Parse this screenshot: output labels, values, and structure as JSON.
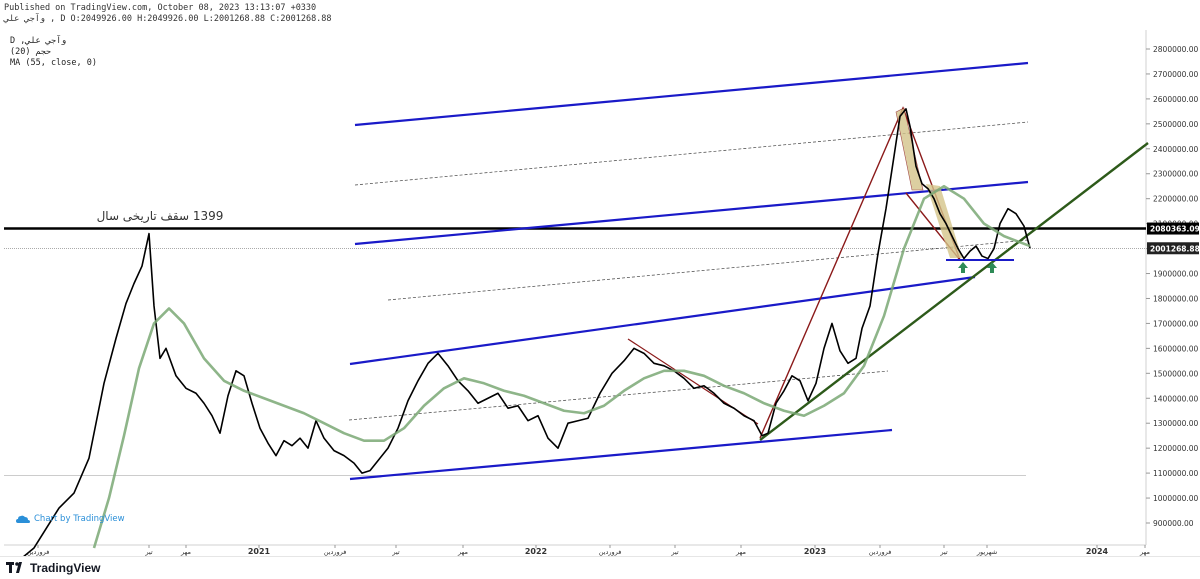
{
  "header": {
    "published": "Published on TradingView.com, October 08, 2023 13:13:07 +0330",
    "ohlc": "D O:2049926.00 H:2049926.00 L:2001268.88 C:2001268.88",
    "symbol": "وآجي علي"
  },
  "legend": {
    "line1": "D ,وآجي علي",
    "line2": "(20) حجم",
    "line3": "MA (55, close, 0)"
  },
  "watermark": {
    "text": "Chart by TradingView"
  },
  "footer": {
    "brand": "TradingView"
  },
  "annotation": {
    "text": "1399 سقف تاریخی سال"
  },
  "colors": {
    "price": "#000000",
    "ma": "#7aa874",
    "channel": "#1a1ac8",
    "trend": "#2d5a1a",
    "pattern": "#8b1a1a",
    "fill": "#d4c48a",
    "marker": "#2e8b57"
  },
  "chart_data": {
    "type": "line",
    "title": "",
    "ylim": [
      850000,
      2850000
    ],
    "y_ticks": [
      "2800000.00",
      "2700000.00",
      "2600000.00",
      "2500000.00",
      "2400000.00",
      "2300000.00",
      "2200000.00",
      "2100000.00",
      "2000000.00",
      "1900000.00",
      "1800000.00",
      "1700000.00",
      "1600000.00",
      "1500000.00",
      "1400000.00",
      "1300000.00",
      "1200000.00",
      "1100000.00",
      "1000000.00",
      "900000.00"
    ],
    "x_ticks": [
      "فروردین",
      "تیر",
      "مهر",
      "2021",
      "فروردین",
      "تیر",
      "مهر",
      "2022",
      "فروردین",
      "تیر",
      "مهر",
      "2023",
      "فروردین",
      "تیر",
      "شهریور",
      "2024",
      "مهر"
    ],
    "price_labels": [
      {
        "value": 2080363.09,
        "label": "2080363.09"
      },
      {
        "value": 2001268.88,
        "label": "2001268.88"
      }
    ],
    "series": [
      {
        "values": [
          [
            0,
            700000
          ],
          [
            30,
            800000
          ],
          [
            55,
            960000
          ],
          [
            70,
            1020000
          ],
          [
            85,
            1160000
          ],
          [
            100,
            1460000
          ],
          [
            112,
            1640000
          ],
          [
            122,
            1780000
          ],
          [
            130,
            1860000
          ],
          [
            138,
            1930000
          ],
          [
            145,
            2060000
          ],
          [
            150,
            1770000
          ],
          [
            156,
            1560000
          ],
          [
            162,
            1600000
          ],
          [
            172,
            1490000
          ],
          [
            182,
            1440000
          ],
          [
            192,
            1420000
          ],
          [
            200,
            1380000
          ],
          [
            208,
            1330000
          ],
          [
            216,
            1260000
          ],
          [
            224,
            1410000
          ],
          [
            232,
            1510000
          ],
          [
            240,
            1490000
          ],
          [
            248,
            1380000
          ],
          [
            256,
            1280000
          ],
          [
            264,
            1220000
          ],
          [
            272,
            1170000
          ],
          [
            280,
            1230000
          ],
          [
            288,
            1210000
          ],
          [
            296,
            1240000
          ],
          [
            304,
            1200000
          ],
          [
            312,
            1310000
          ],
          [
            320,
            1240000
          ],
          [
            330,
            1190000
          ],
          [
            340,
            1170000
          ],
          [
            350,
            1140000
          ],
          [
            358,
            1100000
          ],
          [
            366,
            1110000
          ],
          [
            374,
            1150000
          ],
          [
            384,
            1200000
          ],
          [
            394,
            1280000
          ],
          [
            404,
            1390000
          ],
          [
            414,
            1470000
          ],
          [
            424,
            1540000
          ],
          [
            434,
            1580000
          ],
          [
            444,
            1530000
          ],
          [
            454,
            1470000
          ],
          [
            464,
            1430000
          ],
          [
            474,
            1380000
          ],
          [
            484,
            1400000
          ],
          [
            494,
            1420000
          ],
          [
            504,
            1360000
          ],
          [
            514,
            1370000
          ],
          [
            524,
            1310000
          ],
          [
            534,
            1330000
          ],
          [
            544,
            1240000
          ],
          [
            554,
            1200000
          ],
          [
            564,
            1300000
          ],
          [
            574,
            1310000
          ],
          [
            584,
            1320000
          ],
          [
            596,
            1420000
          ],
          [
            608,
            1500000
          ],
          [
            620,
            1550000
          ],
          [
            630,
            1600000
          ],
          [
            640,
            1580000
          ],
          [
            650,
            1540000
          ],
          [
            660,
            1530000
          ],
          [
            670,
            1510000
          ],
          [
            680,
            1480000
          ],
          [
            690,
            1440000
          ],
          [
            700,
            1450000
          ],
          [
            710,
            1420000
          ],
          [
            720,
            1380000
          ],
          [
            730,
            1360000
          ],
          [
            740,
            1330000
          ],
          [
            750,
            1310000
          ],
          [
            758,
            1250000
          ],
          [
            764,
            1260000
          ],
          [
            772,
            1380000
          ],
          [
            780,
            1430000
          ],
          [
            788,
            1490000
          ],
          [
            796,
            1470000
          ],
          [
            804,
            1390000
          ],
          [
            812,
            1460000
          ],
          [
            820,
            1600000
          ],
          [
            828,
            1700000
          ],
          [
            836,
            1590000
          ],
          [
            844,
            1540000
          ],
          [
            852,
            1560000
          ],
          [
            858,
            1680000
          ],
          [
            866,
            1770000
          ],
          [
            874,
            1980000
          ],
          [
            882,
            2160000
          ],
          [
            890,
            2370000
          ],
          [
            896,
            2530000
          ],
          [
            902,
            2560000
          ],
          [
            906,
            2490000
          ],
          [
            912,
            2330000
          ],
          [
            918,
            2260000
          ],
          [
            924,
            2240000
          ],
          [
            930,
            2200000
          ],
          [
            936,
            2140000
          ],
          [
            942,
            2100000
          ],
          [
            948,
            2050000
          ],
          [
            954,
            2000000
          ],
          [
            960,
            1960000
          ],
          [
            966,
            1990000
          ],
          [
            972,
            2010000
          ],
          [
            978,
            1970000
          ],
          [
            984,
            1960000
          ],
          [
            990,
            2000000
          ],
          [
            996,
            2100000
          ],
          [
            1004,
            2160000
          ],
          [
            1012,
            2140000
          ],
          [
            1020,
            2090000
          ],
          [
            1026,
            2001268
          ]
        ]
      },
      {
        "name": "MA (55, close, 0)",
        "values": [
          [
            90,
            800000
          ],
          [
            105,
            1000000
          ],
          [
            120,
            1250000
          ],
          [
            135,
            1520000
          ],
          [
            150,
            1700000
          ],
          [
            165,
            1760000
          ],
          [
            180,
            1700000
          ],
          [
            200,
            1560000
          ],
          [
            220,
            1470000
          ],
          [
            240,
            1430000
          ],
          [
            260,
            1400000
          ],
          [
            280,
            1370000
          ],
          [
            300,
            1340000
          ],
          [
            320,
            1300000
          ],
          [
            340,
            1260000
          ],
          [
            360,
            1230000
          ],
          [
            380,
            1230000
          ],
          [
            400,
            1280000
          ],
          [
            420,
            1370000
          ],
          [
            440,
            1440000
          ],
          [
            460,
            1480000
          ],
          [
            480,
            1460000
          ],
          [
            500,
            1430000
          ],
          [
            520,
            1410000
          ],
          [
            540,
            1380000
          ],
          [
            560,
            1350000
          ],
          [
            580,
            1340000
          ],
          [
            600,
            1370000
          ],
          [
            620,
            1430000
          ],
          [
            640,
            1480000
          ],
          [
            660,
            1510000
          ],
          [
            680,
            1510000
          ],
          [
            700,
            1490000
          ],
          [
            720,
            1450000
          ],
          [
            740,
            1420000
          ],
          [
            760,
            1380000
          ],
          [
            780,
            1350000
          ],
          [
            800,
            1330000
          ],
          [
            820,
            1370000
          ],
          [
            840,
            1420000
          ],
          [
            860,
            1530000
          ],
          [
            880,
            1730000
          ],
          [
            900,
            2000000
          ],
          [
            920,
            2200000
          ],
          [
            940,
            2250000
          ],
          [
            960,
            2200000
          ],
          [
            980,
            2100000
          ],
          [
            1000,
            2050000
          ],
          [
            1026,
            2010000
          ]
        ]
      }
    ],
    "grid": false
  }
}
